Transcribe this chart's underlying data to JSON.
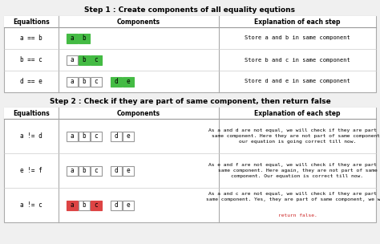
{
  "bg_color": "#f0f0f0",
  "title1": "Step 1 : Create components of all equality equtions",
  "title2": "Step 2 : Check if they are part of same component, then return false",
  "col_headers": [
    "Equaltions",
    "Components",
    "Explanation of each step"
  ],
  "step1_rows": [
    {
      "eq": "a == b",
      "boxes": [
        {
          "label": "a",
          "bg": "#44bb44",
          "border": "#44bb44"
        },
        {
          "label": "b",
          "bg": "#44bb44",
          "border": "#44bb44"
        }
      ],
      "explanation": "Store a and b in same component"
    },
    {
      "eq": "b == c",
      "boxes": [
        {
          "label": "a",
          "bg": "#ffffff",
          "border": "#999999"
        },
        {
          "label": "b",
          "bg": "#44bb44",
          "border": "#44bb44"
        },
        {
          "label": "c",
          "bg": "#44bb44",
          "border": "#44bb44"
        }
      ],
      "explanation": "Store b and c in same component"
    },
    {
      "eq": "d == e",
      "boxes1": [
        {
          "label": "a",
          "bg": "#ffffff",
          "border": "#999999"
        },
        {
          "label": "b",
          "bg": "#ffffff",
          "border": "#999999"
        },
        {
          "label": "c",
          "bg": "#ffffff",
          "border": "#999999"
        }
      ],
      "boxes2": [
        {
          "label": "d",
          "bg": "#44bb44",
          "border": "#44bb44"
        },
        {
          "label": "e",
          "bg": "#44bb44",
          "border": "#44bb44"
        }
      ],
      "explanation": "Store d and e in same component"
    }
  ],
  "step2_rows": [
    {
      "eq": "a != d",
      "boxes1": [
        {
          "label": "a",
          "bg": "#ffffff",
          "border": "#999999"
        },
        {
          "label": "b",
          "bg": "#ffffff",
          "border": "#999999"
        },
        {
          "label": "c",
          "bg": "#ffffff",
          "border": "#999999"
        }
      ],
      "boxes2": [
        {
          "label": "d",
          "bg": "#ffffff",
          "border": "#999999"
        },
        {
          "label": "e",
          "bg": "#ffffff",
          "border": "#999999"
        }
      ],
      "explanation": "As a and d are not equal, we will check if they are part of\nsame component. Here they are not part of same component,\nour equation is going correct till now.",
      "has_red": false
    },
    {
      "eq": "e != f",
      "boxes1": [
        {
          "label": "a",
          "bg": "#ffffff",
          "border": "#999999"
        },
        {
          "label": "b",
          "bg": "#ffffff",
          "border": "#999999"
        },
        {
          "label": "c",
          "bg": "#ffffff",
          "border": "#999999"
        }
      ],
      "boxes2": [
        {
          "label": "d",
          "bg": "#ffffff",
          "border": "#999999"
        },
        {
          "label": "e",
          "bg": "#ffffff",
          "border": "#999999"
        }
      ],
      "explanation": "As e and f are not equal, we will check if they are part of\nsame component. Here again, they are not part of same\ncomponent. Our equation is correct till now.",
      "has_red": false
    },
    {
      "eq": "a != c",
      "boxes1": [
        {
          "label": "a",
          "bg": "#dd4444",
          "border": "#dd4444"
        },
        {
          "label": "b",
          "bg": "#ffffff",
          "border": "#999999"
        },
        {
          "label": "c",
          "bg": "#dd4444",
          "border": "#dd4444"
        }
      ],
      "boxes2": [
        {
          "label": "d",
          "bg": "#ffffff",
          "border": "#999999"
        },
        {
          "label": "e",
          "bg": "#ffffff",
          "border": "#999999"
        }
      ],
      "explanation_black": "As a and c are not equal, we will check if they are part of\nsame component. Yes, they are part of same component, we will",
      "explanation_red": "return false.",
      "has_red": true
    }
  ]
}
